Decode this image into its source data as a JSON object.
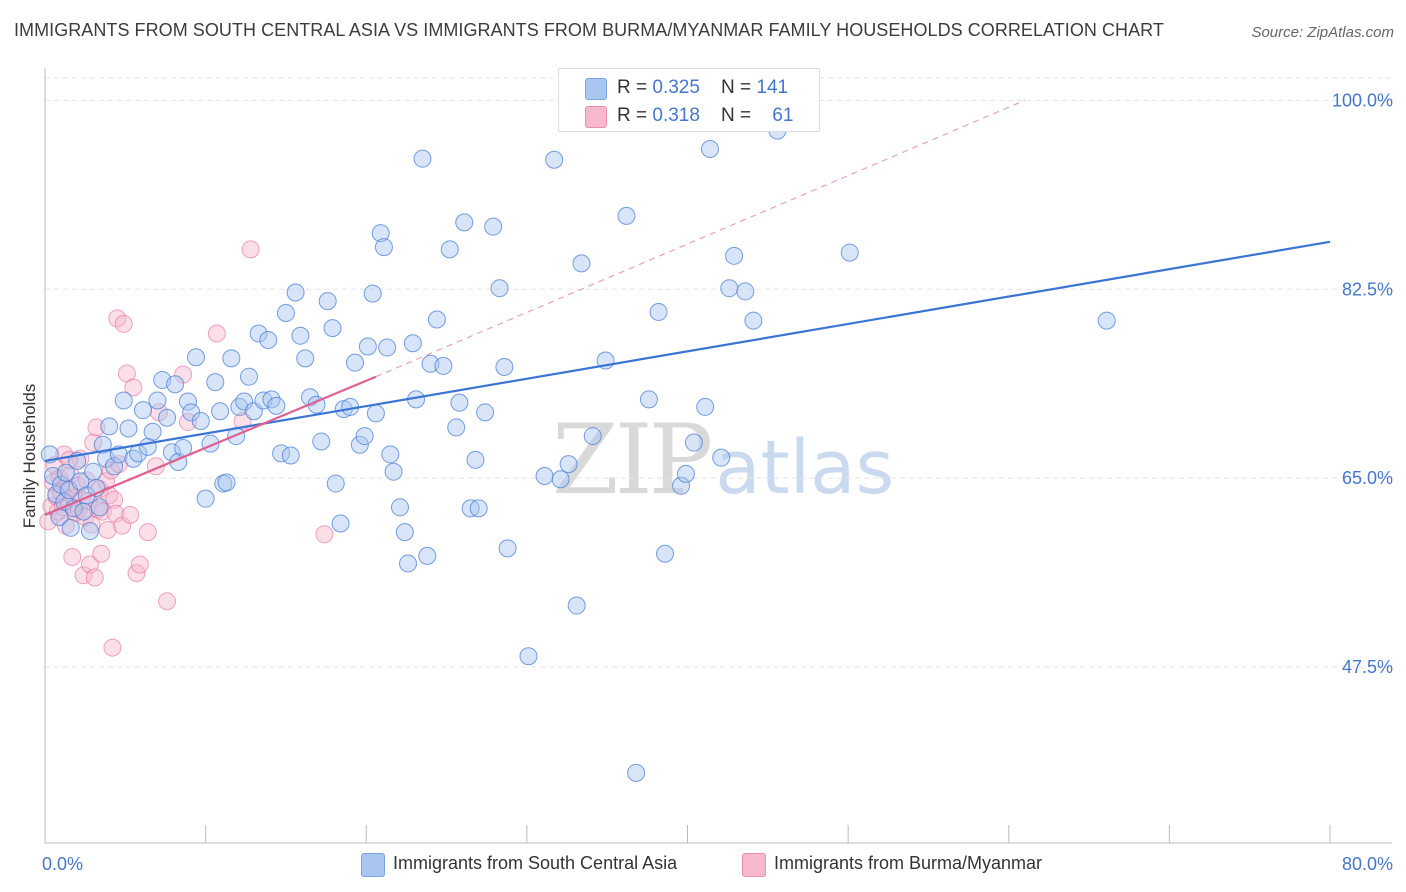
{
  "title": "IMMIGRANTS FROM SOUTH CENTRAL ASIA VS IMMIGRANTS FROM BURMA/MYANMAR FAMILY HOUSEHOLDS CORRELATION CHART",
  "source": "Source: ZipAtlas.com",
  "watermark": {
    "zip": "ZIP",
    "atlas": "atlas"
  },
  "colors": {
    "blue": "#4a7fd6",
    "blue_fill": "#a9c6f0",
    "pink": "#e66b9a",
    "pink_fill": "#f5b8cd",
    "axis_text": "#4477cc"
  },
  "legend": {
    "rows": [
      {
        "r_label": "R = ",
        "r_value": "0.325",
        "n_label": "N = ",
        "n_value": "141"
      },
      {
        "r_label": "R = ",
        "r_value": "0.318",
        "n_label": "N = ",
        "n_value": "61"
      }
    ]
  },
  "bottom_legend": [
    "Immigrants from South Central Asia",
    "Immigrants from Burma/Myanmar"
  ],
  "chart_data": {
    "type": "scatter",
    "title": "IMMIGRANTS FROM SOUTH CENTRAL ASIA VS IMMIGRANTS FROM BURMA/MYANMAR FAMILY HOUSEHOLDS CORRELATION CHART",
    "xlabel": "",
    "ylabel": "Family Households",
    "xlim": [
      0,
      80
    ],
    "ylim": [
      31.2,
      103
    ],
    "x_tick_labels": [
      {
        "value": 0,
        "label": "0.0%"
      },
      {
        "value": 80,
        "label": "80.0%"
      }
    ],
    "y_tick_labels": [
      {
        "value": 100,
        "label": "100.0%"
      },
      {
        "value": 82.5,
        "label": "82.5%"
      },
      {
        "value": 65,
        "label": "65.0%"
      },
      {
        "value": 47.5,
        "label": "47.5%"
      }
    ],
    "series": [
      {
        "name": "Immigrants from South Central Asia",
        "color": "#4a7fd6",
        "R": 0.325,
        "N": 141,
        "trend": {
          "x": [
            0,
            80
          ],
          "y": [
            66.6,
            86.9
          ],
          "style": "solid"
        },
        "points": [
          [
            0.3,
            67.2
          ],
          [
            0.5,
            65.2
          ],
          [
            0.7,
            63.5
          ],
          [
            0.9,
            61.4
          ],
          [
            1.0,
            64.4
          ],
          [
            1.2,
            62.8
          ],
          [
            1.3,
            65.5
          ],
          [
            1.5,
            63.9
          ],
          [
            1.6,
            60.4
          ],
          [
            1.8,
            62.2
          ],
          [
            2.0,
            66.6
          ],
          [
            2.2,
            64.7
          ],
          [
            2.4,
            61.9
          ],
          [
            2.6,
            63.4
          ],
          [
            2.8,
            60.1
          ],
          [
            3.0,
            65.6
          ],
          [
            3.2,
            64.1
          ],
          [
            3.4,
            62.3
          ],
          [
            3.6,
            68.1
          ],
          [
            3.8,
            66.8
          ],
          [
            4.0,
            69.8
          ],
          [
            4.3,
            66.1
          ],
          [
            4.6,
            67.2
          ],
          [
            4.9,
            72.2
          ],
          [
            5.2,
            69.6
          ],
          [
            5.5,
            66.8
          ],
          [
            5.8,
            67.3
          ],
          [
            6.1,
            71.3
          ],
          [
            6.4,
            67.9
          ],
          [
            6.7,
            69.3
          ],
          [
            7.0,
            72.2
          ],
          [
            7.3,
            74.1
          ],
          [
            7.6,
            70.6
          ],
          [
            7.9,
            67.4
          ],
          [
            8.1,
            73.7
          ],
          [
            8.3,
            66.5
          ],
          [
            8.6,
            67.8
          ],
          [
            8.9,
            72.1
          ],
          [
            9.1,
            71.1
          ],
          [
            9.4,
            76.2
          ],
          [
            9.7,
            70.3
          ],
          [
            10.0,
            63.1
          ],
          [
            10.3,
            68.2
          ],
          [
            10.6,
            73.9
          ],
          [
            10.9,
            71.2
          ],
          [
            11.1,
            64.5
          ],
          [
            11.3,
            64.6
          ],
          [
            11.6,
            76.1
          ],
          [
            11.9,
            68.9
          ],
          [
            12.1,
            71.6
          ],
          [
            12.4,
            72.1
          ],
          [
            12.7,
            74.4
          ],
          [
            13.0,
            71.2
          ],
          [
            13.3,
            78.4
          ],
          [
            13.6,
            72.2
          ],
          [
            13.9,
            77.8
          ],
          [
            14.1,
            72.3
          ],
          [
            14.4,
            71.7
          ],
          [
            14.7,
            67.3
          ],
          [
            15.0,
            80.3
          ],
          [
            15.3,
            67.1
          ],
          [
            15.6,
            82.2
          ],
          [
            15.9,
            78.2
          ],
          [
            16.2,
            76.1
          ],
          [
            16.5,
            72.5
          ],
          [
            16.9,
            71.8
          ],
          [
            17.2,
            68.4
          ],
          [
            17.6,
            81.4
          ],
          [
            17.9,
            78.9
          ],
          [
            18.1,
            64.5
          ],
          [
            18.4,
            60.8
          ],
          [
            18.6,
            71.4
          ],
          [
            19.0,
            71.6
          ],
          [
            19.3,
            75.7
          ],
          [
            19.6,
            68.1
          ],
          [
            19.9,
            68.9
          ],
          [
            20.1,
            77.2
          ],
          [
            20.4,
            82.1
          ],
          [
            20.6,
            71.0
          ],
          [
            20.9,
            87.7
          ],
          [
            21.1,
            86.4
          ],
          [
            21.3,
            77.1
          ],
          [
            21.5,
            67.2
          ],
          [
            21.7,
            65.6
          ],
          [
            22.1,
            62.3
          ],
          [
            22.4,
            60.0
          ],
          [
            22.6,
            57.1
          ],
          [
            22.9,
            77.5
          ],
          [
            23.1,
            72.3
          ],
          [
            23.5,
            94.6
          ],
          [
            23.8,
            57.8
          ],
          [
            24.0,
            75.6
          ],
          [
            24.4,
            79.7
          ],
          [
            24.8,
            75.4
          ],
          [
            25.2,
            86.2
          ],
          [
            25.6,
            69.7
          ],
          [
            25.8,
            72.0
          ],
          [
            26.1,
            88.7
          ],
          [
            26.5,
            62.2
          ],
          [
            26.8,
            66.7
          ],
          [
            27.0,
            62.2
          ],
          [
            27.4,
            71.1
          ],
          [
            27.9,
            88.3
          ],
          [
            28.3,
            82.6
          ],
          [
            28.6,
            75.3
          ],
          [
            28.8,
            58.5
          ],
          [
            30.1,
            48.5
          ],
          [
            31.1,
            65.2
          ],
          [
            31.7,
            94.5
          ],
          [
            32.1,
            64.9
          ],
          [
            32.6,
            66.3
          ],
          [
            33.1,
            53.2
          ],
          [
            33.4,
            84.9
          ],
          [
            34.1,
            68.9
          ],
          [
            34.9,
            75.9
          ],
          [
            36.2,
            89.3
          ],
          [
            37.6,
            72.3
          ],
          [
            38.2,
            80.4
          ],
          [
            38.6,
            58.0
          ],
          [
            39.6,
            64.3
          ],
          [
            39.9,
            65.4
          ],
          [
            40.4,
            68.3
          ],
          [
            41.1,
            71.6
          ],
          [
            41.4,
            95.5
          ],
          [
            42.1,
            66.9
          ],
          [
            42.6,
            82.6
          ],
          [
            42.9,
            85.6
          ],
          [
            43.6,
            82.3
          ],
          [
            44.1,
            79.6
          ],
          [
            45.6,
            97.2
          ],
          [
            50.1,
            85.9
          ],
          [
            66.1,
            79.6
          ],
          [
            36.8,
            37.7
          ]
        ]
      },
      {
        "name": "Immigrants from Burma/Myanmar",
        "color": "#e66b9a",
        "R": 0.318,
        "N": 61,
        "trend": {
          "x": [
            0,
            20.6
          ],
          "y": [
            61.6,
            74.4
          ],
          "style": "solid",
          "extended_x": [
            20.6,
            61.0
          ],
          "extended_y": [
            74.4,
            100.0
          ],
          "extended_style": "dashed"
        },
        "points": [
          [
            0.2,
            61.0
          ],
          [
            0.4,
            62.4
          ],
          [
            0.5,
            64.6
          ],
          [
            0.6,
            66.2
          ],
          [
            0.7,
            63.3
          ],
          [
            0.8,
            61.9
          ],
          [
            0.9,
            65.0
          ],
          [
            1.0,
            63.7
          ],
          [
            1.1,
            62.3
          ],
          [
            1.2,
            67.2
          ],
          [
            1.3,
            60.6
          ],
          [
            1.4,
            64.0
          ],
          [
            1.5,
            62.6
          ],
          [
            1.6,
            65.3
          ],
          [
            1.7,
            57.7
          ],
          [
            1.8,
            63.2
          ],
          [
            1.9,
            61.8
          ],
          [
            2.0,
            64.3
          ],
          [
            2.1,
            62.1
          ],
          [
            2.2,
            66.8
          ],
          [
            2.3,
            63.0
          ],
          [
            2.4,
            56.0
          ],
          [
            2.5,
            61.4
          ],
          [
            2.6,
            64.8
          ],
          [
            2.7,
            62.9
          ],
          [
            2.8,
            57.0
          ],
          [
            2.9,
            60.7
          ],
          [
            3.0,
            68.3
          ],
          [
            3.1,
            55.8
          ],
          [
            3.2,
            69.7
          ],
          [
            3.3,
            62.1
          ],
          [
            3.4,
            64.0
          ],
          [
            3.5,
            58.0
          ],
          [
            3.6,
            61.9
          ],
          [
            3.8,
            64.7
          ],
          [
            3.9,
            60.2
          ],
          [
            4.0,
            63.4
          ],
          [
            4.1,
            65.7
          ],
          [
            4.2,
            49.3
          ],
          [
            4.3,
            63.0
          ],
          [
            4.4,
            61.7
          ],
          [
            4.5,
            79.8
          ],
          [
            4.6,
            66.3
          ],
          [
            4.8,
            60.6
          ],
          [
            4.9,
            79.3
          ],
          [
            5.1,
            74.7
          ],
          [
            5.3,
            61.6
          ],
          [
            5.5,
            73.4
          ],
          [
            5.7,
            56.2
          ],
          [
            5.9,
            57.0
          ],
          [
            6.4,
            60.0
          ],
          [
            6.9,
            66.1
          ],
          [
            7.1,
            71.1
          ],
          [
            7.6,
            53.6
          ],
          [
            8.6,
            74.6
          ],
          [
            8.9,
            70.2
          ],
          [
            10.7,
            78.4
          ],
          [
            12.3,
            70.3
          ],
          [
            12.8,
            86.2
          ],
          [
            17.4,
            59.8
          ],
          [
            1.5,
            66.7
          ]
        ]
      }
    ]
  }
}
